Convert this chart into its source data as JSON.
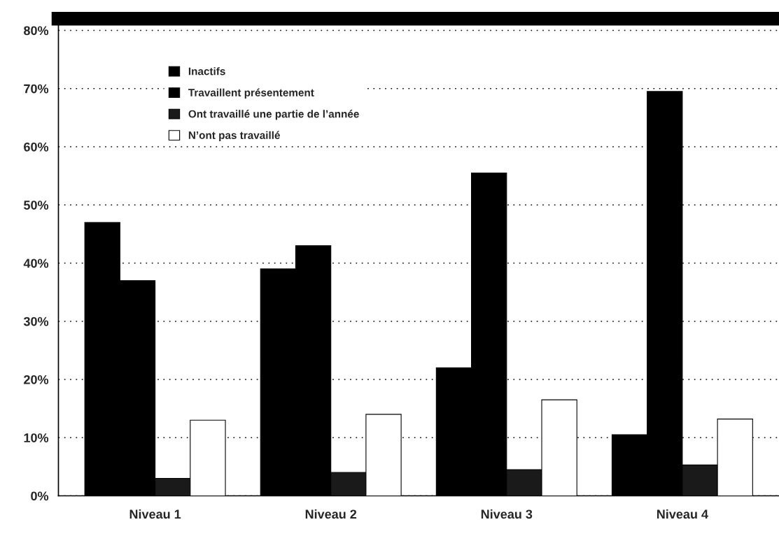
{
  "chart_data": {
    "type": "bar",
    "categories": [
      "Niveau 1",
      "Niveau 2",
      "Niveau 3",
      "Niveau 4"
    ],
    "series": [
      {
        "name": "Inactifs",
        "color": "#000000",
        "values": [
          47,
          39,
          22,
          10.5
        ]
      },
      {
        "name": "Travaillent présentement",
        "color": "#000000",
        "values": [
          37,
          43,
          55.5,
          69.5
        ]
      },
      {
        "name": "Ont travaillé une partie de l’année",
        "color": "#1a1a1a",
        "values": [
          3,
          4,
          4.5,
          5.3
        ]
      },
      {
        "name": "N’ont pas travaillé",
        "color": "#ffffff",
        "values": [
          13,
          14,
          16.5,
          13.2
        ]
      }
    ],
    "ylim": [
      0,
      82
    ],
    "yticks": [
      {
        "value": 0,
        "label": "0%"
      },
      {
        "value": 10,
        "label": "10%"
      },
      {
        "value": 20,
        "label": "20%"
      },
      {
        "value": 30,
        "label": "30%"
      },
      {
        "value": 40,
        "label": "40%"
      },
      {
        "value": 50,
        "label": "50%"
      },
      {
        "value": 60,
        "label": "60%"
      },
      {
        "value": 70,
        "label": "70%"
      },
      {
        "value": 80,
        "label": "80%"
      }
    ],
    "grid": "y",
    "legend": "top left"
  }
}
